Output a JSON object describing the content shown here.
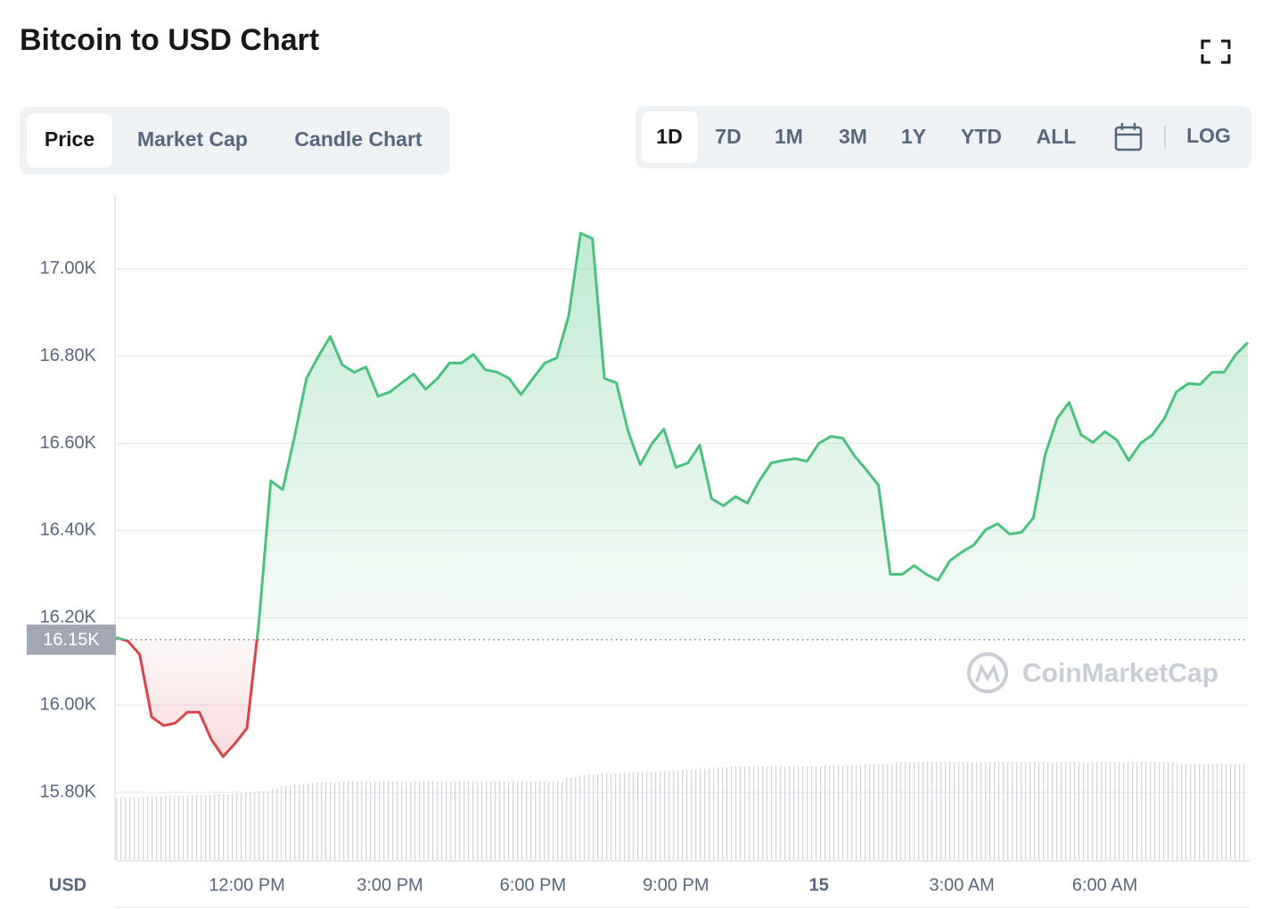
{
  "chart_data": {
    "type": "line",
    "title": "Bitcoin to USD Chart",
    "x": [
      9.25,
      9.5,
      9.75,
      10,
      10.25,
      10.5,
      10.75,
      11,
      11.25,
      11.5,
      11.75,
      12,
      12.25,
      12.5,
      12.75,
      13,
      13.25,
      13.5,
      13.75,
      14,
      14.25,
      14.5,
      14.75,
      15,
      15.25,
      15.5,
      15.75,
      16,
      16.25,
      16.5,
      16.75,
      17,
      17.25,
      17.5,
      17.75,
      18,
      18.25,
      18.5,
      18.75,
      19,
      19.25,
      19.5,
      19.75,
      20,
      20.25,
      20.5,
      20.75,
      21,
      21.25,
      21.5,
      21.75,
      22,
      22.25,
      22.5,
      22.75,
      23,
      23.25,
      23.5,
      23.75,
      24,
      24.25,
      24.5,
      24.75,
      25,
      25.25,
      25.5,
      25.75,
      26,
      26.25,
      26.5,
      26.75,
      27,
      27.25,
      27.5,
      27.75,
      28,
      28.25,
      28.5,
      28.75,
      29,
      29.25,
      29.5,
      29.75,
      30,
      30.25,
      30.5,
      30.75,
      31,
      31.25,
      31.5,
      31.75,
      32,
      32.25,
      32.5,
      32.75,
      33
    ],
    "values": [
      16155,
      16147,
      16116,
      15973,
      15953,
      15959,
      15984,
      15984,
      15922,
      15882,
      15912,
      15947,
      16188,
      16514,
      16494,
      16616,
      16749,
      16800,
      16845,
      16780,
      16763,
      16775,
      16708,
      16718,
      16739,
      16759,
      16724,
      16749,
      16784,
      16784,
      16804,
      16769,
      16763,
      16749,
      16712,
      16749,
      16784,
      16796,
      16892,
      17082,
      17069,
      16749,
      16739,
      16627,
      16551,
      16600,
      16633,
      16545,
      16555,
      16596,
      16473,
      16457,
      16478,
      16463,
      16514,
      16555,
      16561,
      16565,
      16559,
      16600,
      16616,
      16612,
      16571,
      16539,
      16504,
      16300,
      16300,
      16320,
      16300,
      16286,
      16331,
      16351,
      16367,
      16402,
      16416,
      16392,
      16396,
      16429,
      16575,
      16657,
      16694,
      16620,
      16602,
      16627,
      16608,
      16561,
      16600,
      16620,
      16657,
      16718,
      16737,
      16735,
      16763,
      16763,
      16804,
      16831
    ],
    "volume": [
      70,
      70,
      71,
      71,
      72,
      72,
      73,
      73,
      74,
      74,
      75,
      76,
      77,
      80,
      83,
      85,
      86,
      87,
      87,
      88,
      88,
      88,
      88,
      88,
      88,
      88,
      88,
      88,
      88,
      88,
      88,
      88,
      88,
      88,
      88,
      88,
      88,
      88,
      93,
      95,
      96,
      97,
      97,
      98,
      99,
      99,
      100,
      100,
      101,
      102,
      103,
      104,
      105,
      105,
      105,
      105,
      105,
      105,
      105,
      105,
      106,
      106,
      106,
      107,
      107,
      108,
      110,
      110,
      110,
      110,
      110,
      110,
      110,
      110,
      110,
      110,
      110,
      110,
      110,
      110,
      110,
      110,
      110,
      110,
      110,
      110,
      110,
      110,
      110,
      110,
      108,
      108,
      108,
      108,
      108,
      108
    ],
    "baseline": {
      "value": 16150,
      "label": "16.15K"
    },
    "colors": {
      "up": "#4cc17f",
      "down": "#d9434b"
    },
    "xlim": [
      9.25,
      33
    ],
    "xticks": [
      {
        "value": 12,
        "label": "12:00 PM"
      },
      {
        "value": 15,
        "label": "3:00 PM"
      },
      {
        "value": 18,
        "label": "6:00 PM"
      },
      {
        "value": 21,
        "label": "9:00 PM"
      },
      {
        "value": 24,
        "label": "15"
      },
      {
        "value": 27,
        "label": "3:00 AM"
      },
      {
        "value": 30,
        "label": "6:00 AM"
      }
    ],
    "ylim": [
      15645,
      17171
    ],
    "yticks": [
      {
        "value": 15800,
        "label": "15.80K"
      },
      {
        "value": 16000,
        "label": "16.00K"
      },
      {
        "value": 16200,
        "label": "16.20K"
      },
      {
        "value": 16400,
        "label": "16.40K"
      },
      {
        "value": 16600,
        "label": "16.60K"
      },
      {
        "value": 16800,
        "label": "16.80K"
      },
      {
        "value": 17000,
        "label": "17.00K"
      }
    ],
    "y_label": "USD",
    "watermark": "CoinMarketCap",
    "grid": true
  },
  "controls": {
    "tabs": [
      "Price",
      "Market Cap",
      "Candle Chart"
    ],
    "ranges": [
      "1D",
      "7D",
      "1M",
      "3M",
      "1Y",
      "YTD",
      "ALL"
    ],
    "log": "LOG"
  }
}
